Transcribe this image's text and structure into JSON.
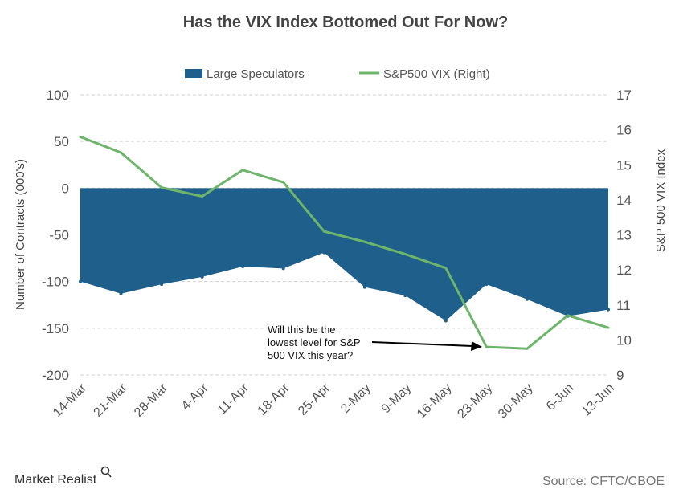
{
  "chart_data": {
    "type": "area",
    "title": "Has the VIX Index Bottomed  Out For Now?",
    "categories": [
      "14-Mar",
      "21-Mar",
      "28-Mar",
      "4-Apr",
      "11-Apr",
      "18-Apr",
      "25-Apr",
      "2-May",
      "9-May",
      "16-May",
      "23-May",
      "30-May",
      "6-Jun",
      "13-Jun"
    ],
    "series": [
      {
        "name": "Large Speculators",
        "type": "area",
        "axis": "left",
        "color": "#1f5f8b",
        "values": [
          -100,
          -113,
          -103,
          -95,
          -84,
          -86,
          -69,
          -106,
          -115,
          -142,
          -103,
          -119,
          -137,
          -130
        ]
      },
      {
        "name": "S&P500 VIX (Right)",
        "type": "line",
        "axis": "right",
        "color": "#6db56a",
        "values": [
          15.8,
          15.35,
          14.35,
          14.1,
          14.85,
          14.5,
          13.1,
          12.8,
          12.45,
          12.05,
          9.8,
          9.75,
          10.7,
          10.35
        ]
      }
    ],
    "ylabel": "Number of Contracts (000's)",
    "ylim": [
      -200,
      100
    ],
    "yticks": [
      "100",
      "50",
      "0",
      "-50",
      "-100",
      "-150",
      "-200"
    ],
    "y2label": "S&P 500 VIX Index",
    "y2lim": [
      9,
      17
    ],
    "y2ticks": [
      "17",
      "16",
      "15",
      "14",
      "13",
      "12",
      "11",
      "10",
      "9"
    ],
    "grid": "horizontal dashed",
    "legend_position": "top",
    "annotation": {
      "lines": [
        "Will this be the",
        "lowest level for S&P",
        "500 VIX this year?"
      ],
      "points_to": "23-May"
    }
  },
  "footer": {
    "brand": "Market Realist",
    "source": "Source: CFTC/CBOE"
  }
}
